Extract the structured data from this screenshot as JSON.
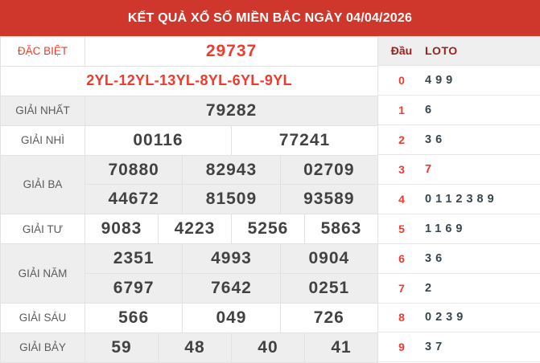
{
  "header": {
    "title": "KẾT QUẢ XỔ SỐ MIỀN BẮC NGÀY 04/04/2026"
  },
  "results": {
    "rows": [
      {
        "label": "ĐẶC BIỆT",
        "values": [
          "29737"
        ]
      },
      {
        "label": "",
        "values": [
          "2YL-12YL-13YL-8YL-6YL-9YL"
        ]
      },
      {
        "label": "GIẢI NHẤT",
        "values": [
          "79282"
        ]
      },
      {
        "label": "GIẢI NHÌ",
        "values": [
          "00116",
          "77241"
        ]
      },
      {
        "label": "GIẢI BA",
        "values": [
          "70880",
          "82943",
          "02709",
          "44672",
          "81509",
          "93589"
        ]
      },
      {
        "label": "GIẢI TƯ",
        "values": [
          "9083",
          "4223",
          "5256",
          "5863"
        ]
      },
      {
        "label": "GIẢI NĂM",
        "values": [
          "2351",
          "4993",
          "0904",
          "6797",
          "7642",
          "0251"
        ]
      },
      {
        "label": "GIẢI SÁU",
        "values": [
          "566",
          "049",
          "726"
        ]
      },
      {
        "label": "GIẢI BẢY",
        "values": [
          "59",
          "48",
          "40",
          "41"
        ]
      }
    ]
  },
  "loto": {
    "columns": {
      "dau": "Đầu",
      "loto": "LOTO"
    },
    "rows": [
      {
        "dau": "0",
        "loto": "499",
        "highlight": false
      },
      {
        "dau": "1",
        "loto": "6",
        "highlight": false
      },
      {
        "dau": "2",
        "loto": "36",
        "highlight": false
      },
      {
        "dau": "3",
        "loto": "7",
        "highlight": true
      },
      {
        "dau": "4",
        "loto": "0112389",
        "highlight": false
      },
      {
        "dau": "5",
        "loto": "1169",
        "highlight": false
      },
      {
        "dau": "6",
        "loto": "36",
        "highlight": false
      },
      {
        "dau": "7",
        "loto": "2",
        "highlight": false
      },
      {
        "dau": "8",
        "loto": "0239",
        "highlight": false
      },
      {
        "dau": "9",
        "loto": "37",
        "highlight": false
      }
    ]
  },
  "colors": {
    "header_bg": "#d0372c",
    "accent_red": "#ee3b2e",
    "table_header_red": "#9b2121",
    "number_dark": "#424242",
    "loto_dark": "#37474f",
    "row_alt_bg": "#eeeeee",
    "border": "#e2e2e2"
  }
}
